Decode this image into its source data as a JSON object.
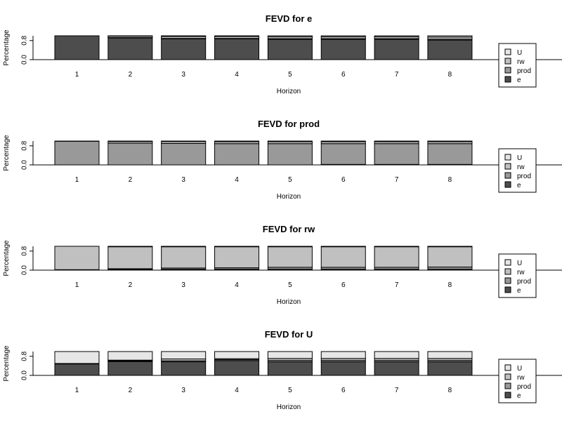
{
  "chart_data": [
    {
      "type": "bar",
      "stacked": true,
      "title": "FEVD for e",
      "xlabel": "Horizon",
      "ylabel": "Percentage",
      "yticks": [
        "0.0",
        "0.8"
      ],
      "ylim": [
        0,
        1
      ],
      "categories": [
        "1",
        "2",
        "3",
        "4",
        "5",
        "6",
        "7",
        "8"
      ],
      "series": [
        {
          "name": "e",
          "color": "#4d4d4d",
          "values": [
            1.0,
            0.91,
            0.87,
            0.87,
            0.85,
            0.85,
            0.85,
            0.82
          ]
        },
        {
          "name": "prod",
          "color": "#999999",
          "values": [
            0.0,
            0.02,
            0.02,
            0.02,
            0.03,
            0.03,
            0.03,
            0.04
          ]
        },
        {
          "name": "rw",
          "color": "#c0c0c0",
          "values": [
            0.0,
            0.06,
            0.08,
            0.08,
            0.08,
            0.08,
            0.08,
            0.09
          ]
        },
        {
          "name": "U",
          "color": "#e6e6e6",
          "values": [
            0.0,
            0.01,
            0.03,
            0.03,
            0.04,
            0.04,
            0.04,
            0.05
          ]
        }
      ],
      "legend": [
        "U",
        "rw",
        "prod",
        "e"
      ]
    },
    {
      "type": "bar",
      "stacked": true,
      "title": "FEVD for prod",
      "xlabel": "Horizon",
      "ylabel": "Percentage",
      "yticks": [
        "0.0",
        "0.8"
      ],
      "ylim": [
        0,
        1
      ],
      "categories": [
        "1",
        "2",
        "3",
        "4",
        "5",
        "6",
        "7",
        "8"
      ],
      "series": [
        {
          "name": "e",
          "color": "#4d4d4d",
          "values": [
            0.0,
            0.0,
            0.0,
            0.0,
            0.0,
            0.02,
            0.02,
            0.02
          ]
        },
        {
          "name": "prod",
          "color": "#999999",
          "values": [
            0.99,
            0.91,
            0.9,
            0.89,
            0.89,
            0.87,
            0.87,
            0.87
          ]
        },
        {
          "name": "rw",
          "color": "#c0c0c0",
          "values": [
            0.01,
            0.07,
            0.08,
            0.08,
            0.08,
            0.08,
            0.08,
            0.08
          ]
        },
        {
          "name": "U",
          "color": "#e6e6e6",
          "values": [
            0.0,
            0.02,
            0.02,
            0.03,
            0.03,
            0.03,
            0.03,
            0.03
          ]
        }
      ],
      "legend": [
        "U",
        "rw",
        "prod",
        "e"
      ]
    },
    {
      "type": "bar",
      "stacked": true,
      "title": "FEVD for rw",
      "xlabel": "Horizon",
      "ylabel": "Percentage",
      "yticks": [
        "0.0",
        "0.8"
      ],
      "ylim": [
        0,
        1
      ],
      "categories": [
        "1",
        "2",
        "3",
        "4",
        "5",
        "6",
        "7",
        "8"
      ],
      "series": [
        {
          "name": "e",
          "color": "#4d4d4d",
          "values": [
            0.01,
            0.04,
            0.04,
            0.04,
            0.04,
            0.04,
            0.04,
            0.04
          ]
        },
        {
          "name": "prod",
          "color": "#999999",
          "values": [
            0.01,
            0.02,
            0.05,
            0.06,
            0.08,
            0.08,
            0.08,
            0.09
          ]
        },
        {
          "name": "rw",
          "color": "#c0c0c0",
          "values": [
            0.98,
            0.92,
            0.89,
            0.88,
            0.86,
            0.86,
            0.86,
            0.85
          ]
        },
        {
          "name": "U",
          "color": "#e6e6e6",
          "values": [
            0.0,
            0.02,
            0.02,
            0.02,
            0.02,
            0.02,
            0.02,
            0.02
          ]
        }
      ],
      "legend": [
        "U",
        "rw",
        "prod",
        "e"
      ]
    },
    {
      "type": "bar",
      "stacked": true,
      "title": "FEVD for U",
      "xlabel": "Horizon",
      "ylabel": "Percentage",
      "yticks": [
        "0.0",
        "0.8"
      ],
      "ylim": [
        0,
        1
      ],
      "categories": [
        "1",
        "2",
        "3",
        "4",
        "5",
        "6",
        "7",
        "8"
      ],
      "series": [
        {
          "name": "e",
          "color": "#4d4d4d",
          "values": [
            0.48,
            0.58,
            0.57,
            0.62,
            0.57,
            0.57,
            0.57,
            0.57
          ]
        },
        {
          "name": "prod",
          "color": "#999999",
          "values": [
            0.02,
            0.03,
            0.04,
            0.04,
            0.06,
            0.06,
            0.06,
            0.06
          ]
        },
        {
          "name": "rw",
          "color": "#c0c0c0",
          "values": [
            0.0,
            0.03,
            0.08,
            0.04,
            0.08,
            0.08,
            0.08,
            0.08
          ]
        },
        {
          "name": "U",
          "color": "#e6e6e6",
          "values": [
            0.5,
            0.36,
            0.31,
            0.3,
            0.29,
            0.29,
            0.29,
            0.29
          ]
        }
      ],
      "legend": [
        "U",
        "rw",
        "prod",
        "e"
      ]
    }
  ]
}
